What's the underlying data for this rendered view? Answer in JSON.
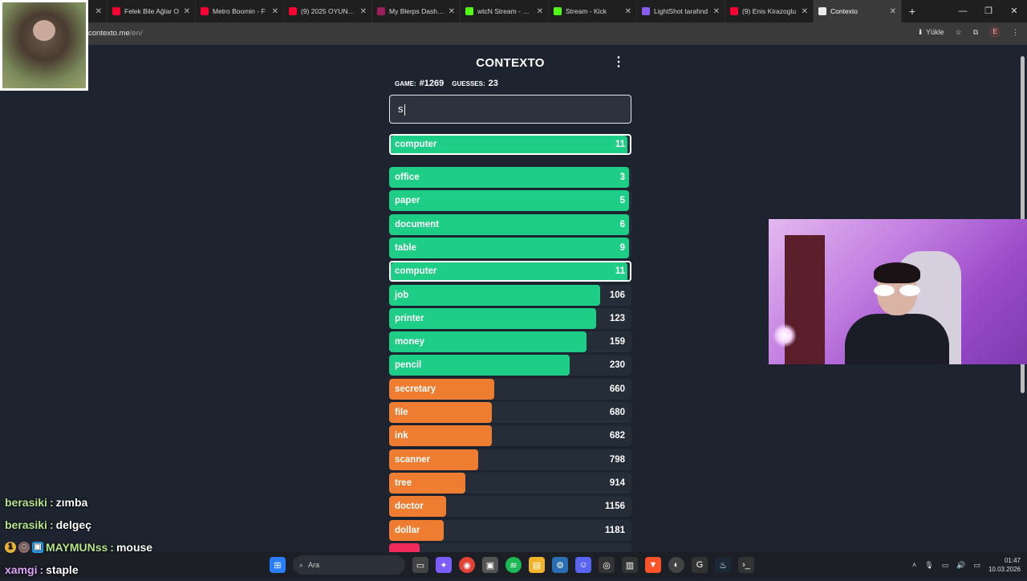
{
  "browser": {
    "tabs": [
      {
        "title": "",
        "color": "#3a3a3a",
        "active": false
      },
      {
        "title": "Felek Bile Ağlar O",
        "color": "#ff0033",
        "active": false
      },
      {
        "title": "Metro Boomin - F",
        "color": "#ff0033",
        "active": false
      },
      {
        "title": "(9) 2025 OYUNLA",
        "color": "#ff0033",
        "active": false
      },
      {
        "title": "My Blerps Dashbo",
        "color": "#9b1f5a",
        "active": false
      },
      {
        "title": "wtcN Stream - We",
        "color": "#53fc18",
        "active": false
      },
      {
        "title": "Stream - Kick",
        "color": "#53fc18",
        "active": false
      },
      {
        "title": "LightShot tarafınd",
        "color": "#8a5cf6",
        "active": false
      },
      {
        "title": "(9) Enis Kirazoglu",
        "color": "#ff0033",
        "active": false
      },
      {
        "title": "Contexto",
        "color": "#e9e9e9",
        "active": true
      }
    ],
    "url_host": "contexto.me",
    "url_path": "/en/",
    "install_label": "Yükle",
    "profile_initial": "E"
  },
  "game": {
    "title": "CONTEXTO",
    "game_label": "GAME:",
    "game_number": "#1269",
    "guesses_label": "GUESSES:",
    "guesses_count": "23",
    "input_value": "s",
    "last_guess": {
      "word": "computer",
      "rank": 11,
      "fill": 0.99,
      "color": "#1ecd86"
    },
    "guesses": [
      {
        "word": "office",
        "rank": 3,
        "fill": 0.99,
        "color": "#1ecd86"
      },
      {
        "word": "paper",
        "rank": 5,
        "fill": 0.99,
        "color": "#1ecd86"
      },
      {
        "word": "document",
        "rank": 6,
        "fill": 0.99,
        "color": "#1ecd86"
      },
      {
        "word": "table",
        "rank": 9,
        "fill": 0.99,
        "color": "#1ecd86"
      },
      {
        "word": "computer",
        "rank": 11,
        "fill": 0.99,
        "color": "#1ecd86",
        "highlight": true
      },
      {
        "word": "job",
        "rank": 106,
        "fill": 0.87,
        "color": "#1ecd86"
      },
      {
        "word": "printer",
        "rank": 123,
        "fill": 0.855,
        "color": "#1ecd86"
      },
      {
        "word": "money",
        "rank": 159,
        "fill": 0.815,
        "color": "#1ecd86"
      },
      {
        "word": "pencil",
        "rank": 230,
        "fill": 0.745,
        "color": "#1ecd86"
      },
      {
        "word": "secretary",
        "rank": 660,
        "fill": 0.435,
        "color": "#ef7d31"
      },
      {
        "word": "file",
        "rank": 680,
        "fill": 0.425,
        "color": "#ef7d31"
      },
      {
        "word": "ink",
        "rank": 682,
        "fill": 0.425,
        "color": "#ef7d31"
      },
      {
        "word": "scanner",
        "rank": 798,
        "fill": 0.368,
        "color": "#ef7d31"
      },
      {
        "word": "tree",
        "rank": 914,
        "fill": 0.315,
        "color": "#ef7d31"
      },
      {
        "word": "doctor",
        "rank": 1156,
        "fill": 0.235,
        "color": "#ef7d31"
      },
      {
        "word": "dollar",
        "rank": 1181,
        "fill": 0.225,
        "color": "#ef7d31"
      },
      {
        "word": "",
        "rank": "",
        "fill": 0.125,
        "color": "#f2295b"
      }
    ]
  },
  "chat": [
    {
      "user": "berasiki",
      "sep": ":",
      "msg": "zımba",
      "badges": false,
      "purple": false
    },
    {
      "user": "berasiki",
      "sep": ":",
      "msg": "delgeç",
      "badges": false,
      "purple": false
    },
    {
      "user": "MAYMUNss",
      "sep": ":",
      "msg": "mouse",
      "badges": true,
      "purple": false
    },
    {
      "user": "xamgi",
      "sep": ":",
      "msg": "staple",
      "badges": false,
      "purple": true
    }
  ],
  "taskbar": {
    "search_placeholder": "Ara",
    "time": "01:47",
    "date": "10.03.2026"
  }
}
